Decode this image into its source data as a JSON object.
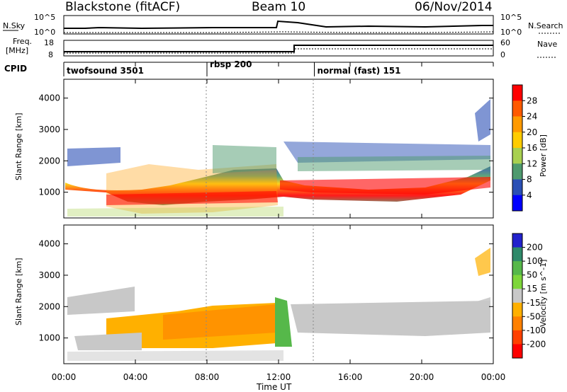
{
  "header": {
    "station": "Blackstone (fitACF)",
    "beam": "Beam 10",
    "date": "06/Nov/2014"
  },
  "noise_panel": {
    "left_label": "N.Sky",
    "right_label": "N.Search",
    "left_ticks": [
      "10^5",
      "10^0"
    ],
    "right_ticks": [
      "10^5",
      "10^0"
    ]
  },
  "freq_panel": {
    "left_label_1": "Freq.",
    "left_label_2": "[MHz]",
    "right_label": "Nave",
    "left_ticks": [
      "18",
      "8"
    ],
    "right_ticks": [
      "60",
      "0"
    ]
  },
  "cpid_panel": {
    "label": "CPID",
    "modes": [
      {
        "name": "twofsound 3501",
        "start_hour": 0
      },
      {
        "name": "rbsp 200",
        "start_hour": 8
      },
      {
        "name": "normal (fast) 151",
        "start_hour": 14
      }
    ]
  },
  "time_axis": {
    "label": "Time UT",
    "ticks": [
      "00:00",
      "04:00",
      "08:00",
      "12:00",
      "16:00",
      "20:00",
      "00:00"
    ]
  },
  "chart_data": [
    {
      "type": "heatmap",
      "name": "power",
      "ylabel": "Slant Range [km]",
      "yticks": [
        1000,
        2000,
        3000,
        4000
      ],
      "ylim": [
        180,
        4600
      ],
      "xlim_hours": [
        0,
        24
      ],
      "colorbar_label": "Power [dB]",
      "colorbar_ticks": [
        "28",
        "24",
        "20",
        "16",
        "12",
        "8",
        "4"
      ],
      "colorbar_colors": [
        "#ff0000",
        "#ff5a00",
        "#ff9a00",
        "#ffcc00",
        "#a8d050",
        "#4e9a6e",
        "#2a4fb5",
        "#0000ff"
      ],
      "main_band_range_km": [
        {
          "hour": 0,
          "range": 1150
        },
        {
          "hour": 2,
          "range": 1000
        },
        {
          "hour": 4,
          "range": 1000
        },
        {
          "hour": 8,
          "range": 1050
        },
        {
          "hour": 10,
          "range": 1250
        },
        {
          "hour": 12,
          "range": 1300
        },
        {
          "hour": 13,
          "range": 1100
        },
        {
          "hour": 16,
          "range": 1100
        },
        {
          "hour": 20,
          "range": 1000
        },
        {
          "hour": 22,
          "range": 1300
        },
        {
          "hour": 24,
          "range": 1650
        }
      ]
    },
    {
      "type": "heatmap",
      "name": "velocity",
      "ylabel": "Slant Range [km]",
      "yticks": [
        1000,
        2000,
        3000,
        4000
      ],
      "ylim": [
        180,
        4600
      ],
      "xlim_hours": [
        0,
        24
      ],
      "colorbar_label": "Velocity [m s^-1]",
      "colorbar_ticks": [
        "200",
        "100",
        "50",
        "15",
        "-15",
        "-50",
        "-100",
        "-200"
      ],
      "colorbar_colors": [
        "#2222cc",
        "#2f8a6a",
        "#56b84a",
        "#7ed63a",
        "#c8c8c8",
        "#ffb000",
        "#ff8000",
        "#ff4000",
        "#ff0000"
      ]
    }
  ]
}
